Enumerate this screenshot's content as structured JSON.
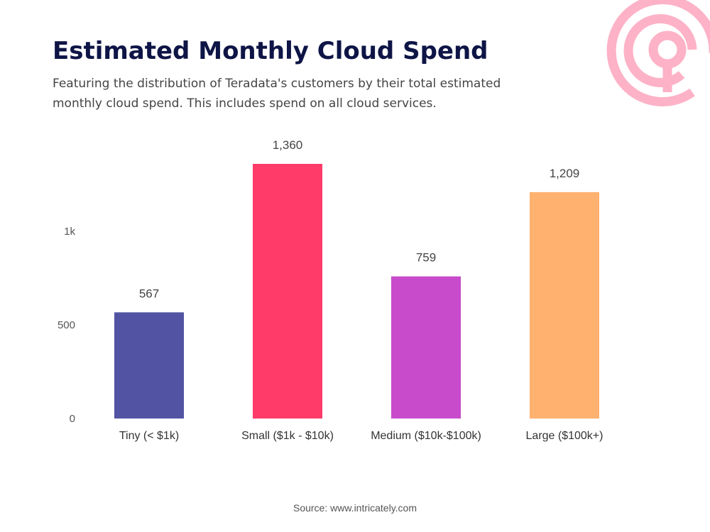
{
  "colors": {
    "title": "#0e1546",
    "logo": "#fdb2c7"
  },
  "logo": {
    "icon": "target-logo-icon"
  },
  "chart_data": {
    "type": "bar",
    "title": "Estimated Monthly Cloud Spend",
    "subtitle": "Featuring the distribution of Teradata's customers by their total estimated monthly cloud spend. This includes spend on all cloud services.",
    "categories": [
      "Tiny (< $1k)",
      "Small ($1k - $10k)",
      "Medium ($10k-$100k)",
      "Large ($100k+)"
    ],
    "values": [
      567,
      1360,
      759,
      1209
    ],
    "value_labels": [
      "567",
      "1,360",
      "759",
      "1,209"
    ],
    "colors": [
      "#5254a3",
      "#ff3b6a",
      "#c84bcc",
      "#ffb170"
    ],
    "yticks": [
      0,
      500,
      1000
    ],
    "ytick_labels": [
      "0",
      "500",
      "1k"
    ],
    "ylim": [
      0,
      1360
    ],
    "grid": false,
    "source": "Source: www.intricately.com"
  }
}
